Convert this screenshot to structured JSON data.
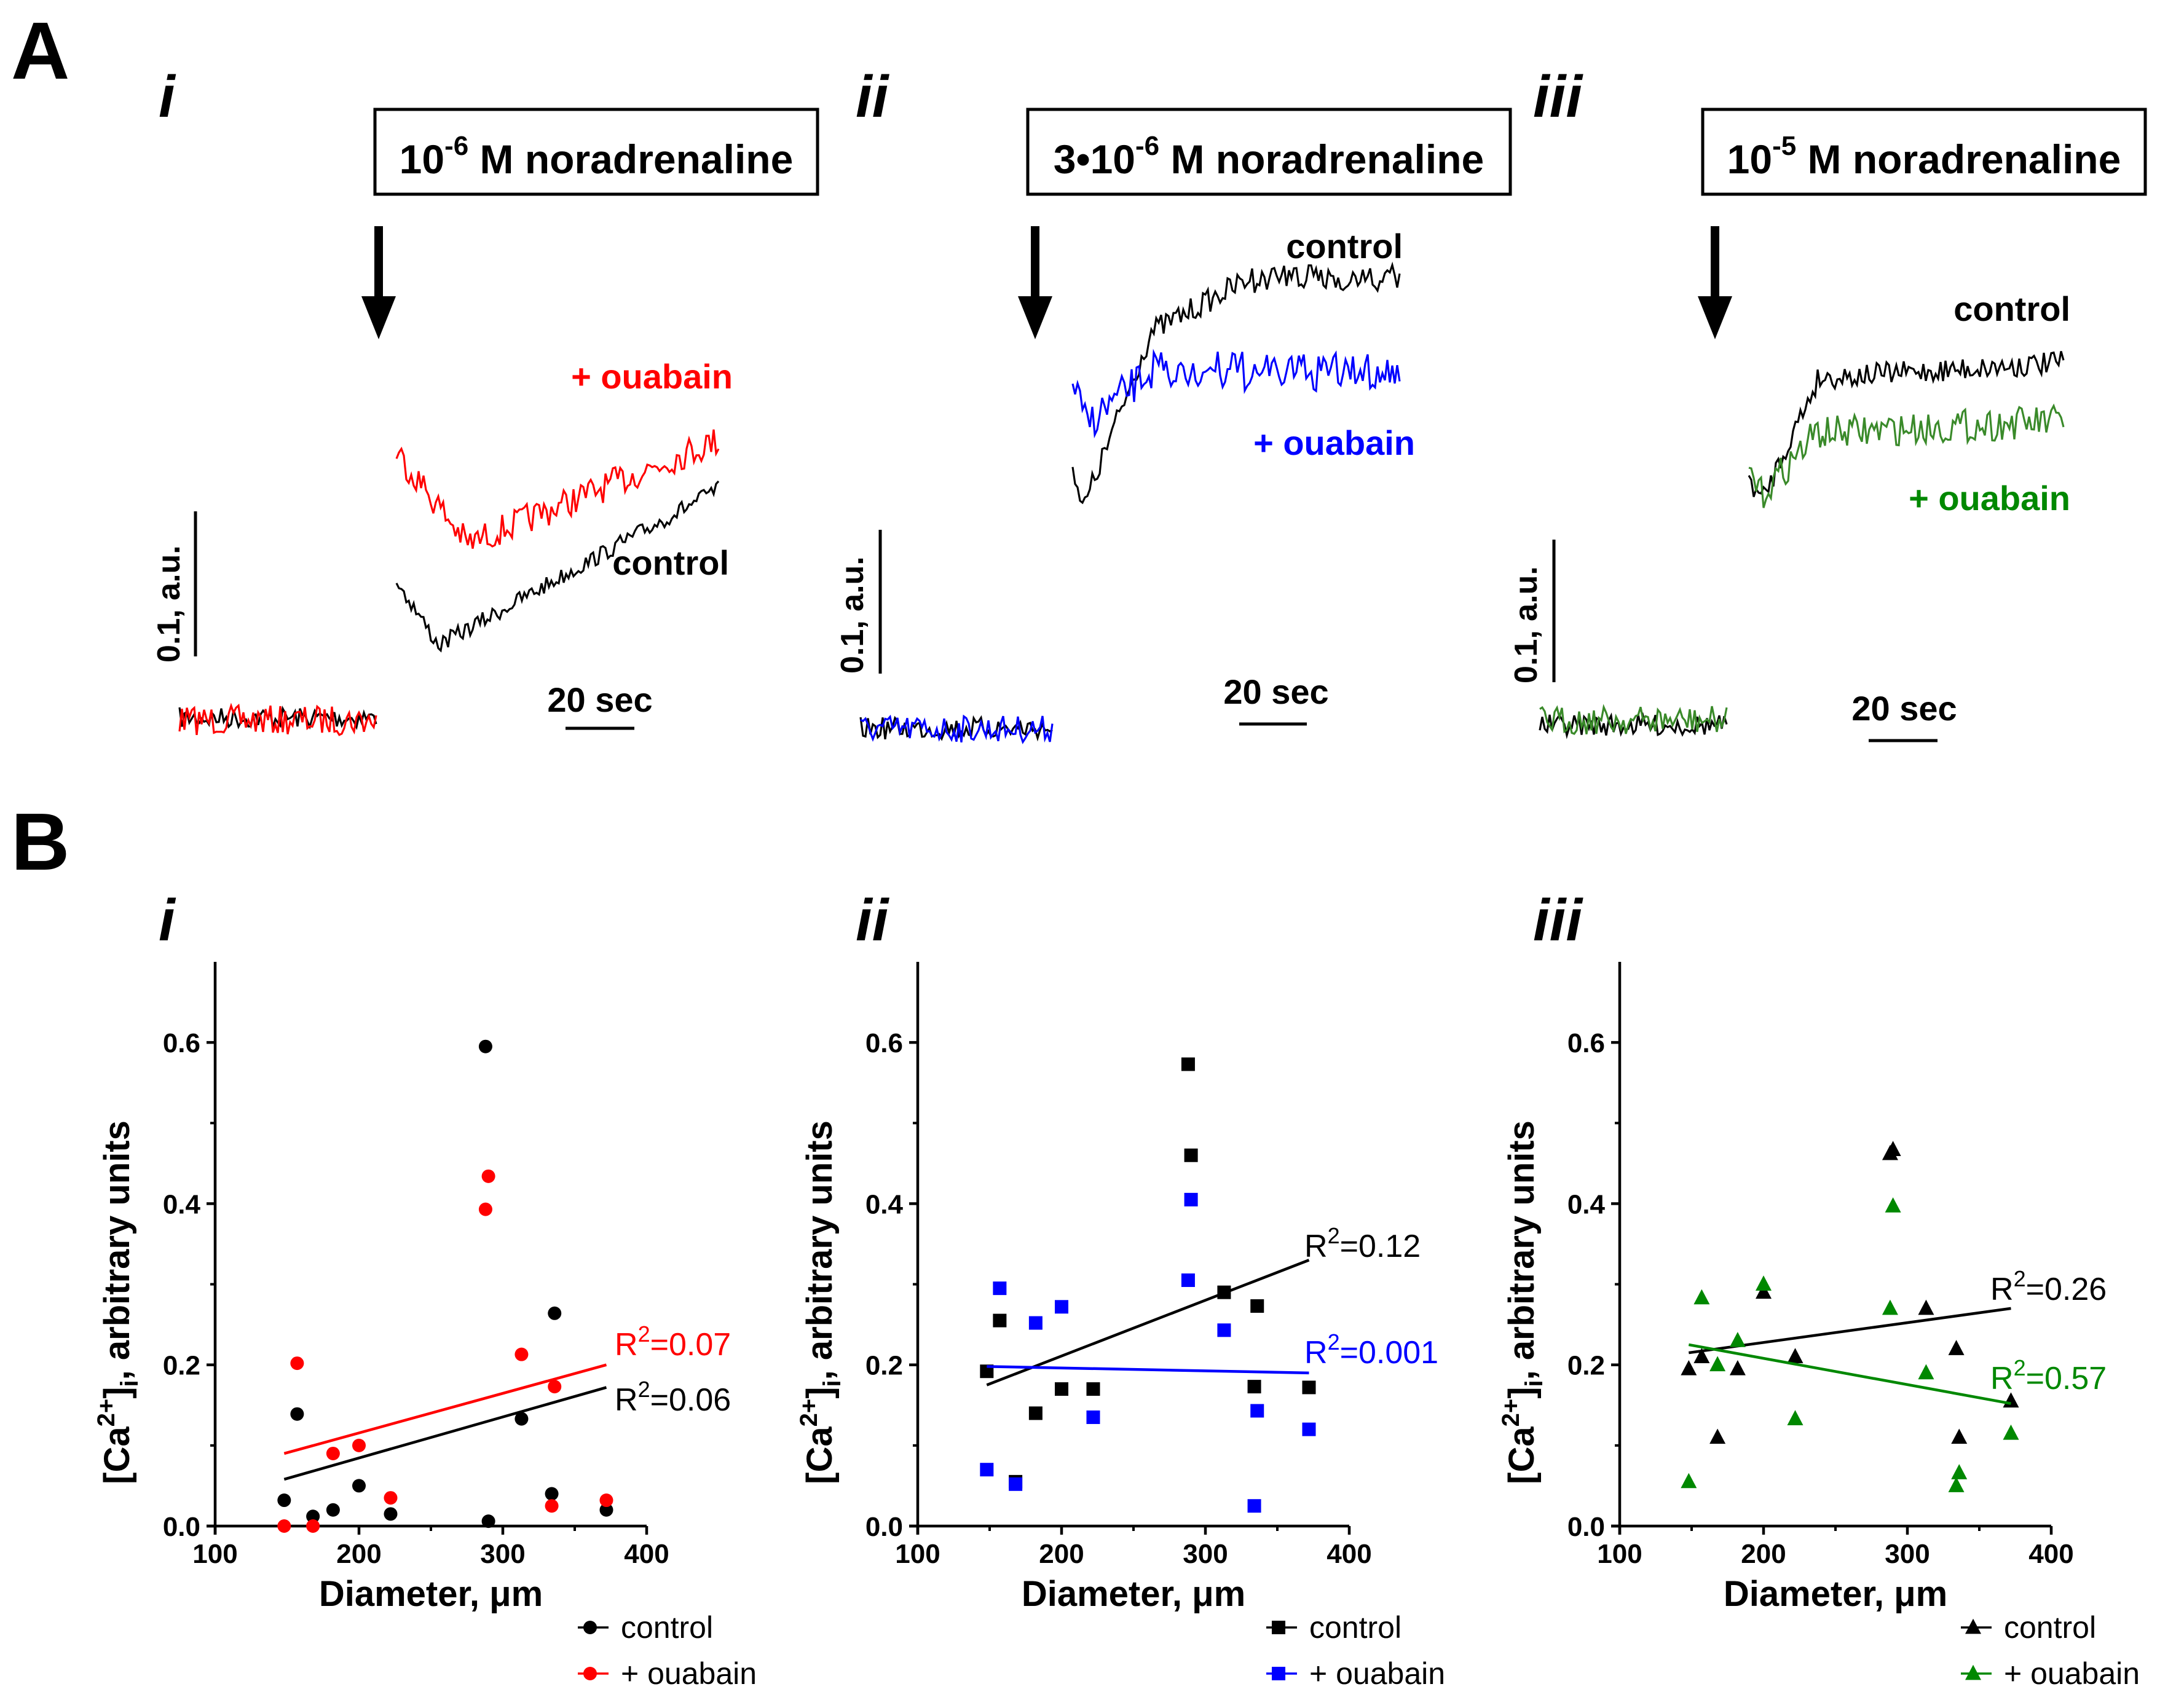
{
  "panels": {
    "A": {
      "label": "A",
      "sub": [
        {
          "roman": "i",
          "stimulus": {
            "base": "10",
            "exponent": "-6",
            "rest": " M noradrenaline"
          },
          "traces": [
            {
              "name": "+ ouabain",
              "color": "#ff0000",
              "label": "+ ouabain"
            },
            {
              "name": "control",
              "color": "#000000",
              "label": "control"
            }
          ],
          "scale_y": "0.1, a.u.",
          "scale_x": "20 sec"
        },
        {
          "roman": "ii",
          "stimulus": {
            "base": "3•10",
            "exponent": "-6",
            "rest": " M noradrenaline"
          },
          "traces": [
            {
              "name": "control",
              "color": "#000000",
              "label": "control"
            },
            {
              "name": "+ ouabain",
              "color": "#0000ff",
              "label": "+ ouabain"
            }
          ],
          "scale_y": "0.1, a.u.",
          "scale_x": "20 sec"
        },
        {
          "roman": "iii",
          "stimulus": {
            "base": "10",
            "exponent": "-5",
            "rest": " M noradrenaline"
          },
          "traces": [
            {
              "name": "control",
              "color": "#000000",
              "label": "control"
            },
            {
              "name": "+ ouabain",
              "color": "#3a8a2a",
              "label": "+ ouabain"
            }
          ],
          "scale_y": "0.1, a.u.",
          "scale_x": "20 sec"
        }
      ]
    },
    "B": {
      "label": "B"
    }
  },
  "chart_data": [
    {
      "type": "scatter",
      "roman": "i",
      "marker": "circle",
      "xlabel": "Diameter, μm",
      "ylabel_parts": {
        "pre": "[Ca",
        "sup": "2+",
        "mid": "]",
        "sub": "i",
        "post": ", arbitrary units"
      },
      "xlim": [
        100,
        400
      ],
      "ylim": [
        0,
        0.7
      ],
      "xticks": [
        100,
        200,
        300,
        400
      ],
      "yticks": [
        0.0,
        0.2,
        0.4,
        0.6
      ],
      "ytick_labels": [
        "0.0",
        "0.2",
        "0.4",
        "0.6"
      ],
      "series": [
        {
          "name": "control",
          "color": "#000000",
          "points": [
            [
              148,
              0.032
            ],
            [
              157,
              0.139
            ],
            [
              168,
              0.012
            ],
            [
              182,
              0.02
            ],
            [
              200,
              0.05
            ],
            [
              222,
              0.015
            ],
            [
              288,
              0.595
            ],
            [
              290,
              0.006
            ],
            [
              313,
              0.133
            ],
            [
              334,
              0.04
            ],
            [
              336,
              0.264
            ],
            [
              372,
              0.02
            ]
          ],
          "fit": {
            "x": [
              148,
              372
            ],
            "y": [
              0.058,
              0.172
            ]
          },
          "r2_label": {
            "base": "R",
            "sup": "2",
            "rest": "=0.06"
          }
        },
        {
          "name": "+ ouabain",
          "color": "#ff0000",
          "points": [
            [
              148,
              0.0
            ],
            [
              157,
              0.202
            ],
            [
              168,
              0.0
            ],
            [
              182,
              0.09
            ],
            [
              200,
              0.1
            ],
            [
              222,
              0.035
            ],
            [
              288,
              0.393
            ],
            [
              290,
              0.434
            ],
            [
              313,
              0.213
            ],
            [
              334,
              0.025
            ],
            [
              336,
              0.173
            ],
            [
              372,
              0.032
            ]
          ],
          "fit": {
            "x": [
              148,
              372
            ],
            "y": [
              0.09,
              0.2
            ]
          },
          "r2_label": {
            "base": "R",
            "sup": "2",
            "rest": "=0.07"
          }
        }
      ],
      "legend": [
        "control",
        "+ ouabain"
      ]
    },
    {
      "type": "scatter",
      "roman": "ii",
      "marker": "square",
      "xlabel": "Diameter, μm",
      "ylabel_parts": {
        "pre": "[Ca",
        "sup": "2+",
        "mid": "]",
        "sub": "i",
        "post": ", arbitrary units"
      },
      "xlim": [
        100,
        400
      ],
      "ylim": [
        0,
        0.7
      ],
      "xticks": [
        100,
        200,
        300,
        400
      ],
      "yticks": [
        0.0,
        0.2,
        0.4,
        0.6
      ],
      "ytick_labels": [
        "0.0",
        "0.2",
        "0.4",
        "0.6"
      ],
      "series": [
        {
          "name": "control",
          "color": "#000000",
          "points": [
            [
              148,
              0.192
            ],
            [
              157,
              0.255
            ],
            [
              168,
              0.055
            ],
            [
              182,
              0.14
            ],
            [
              200,
              0.17
            ],
            [
              222,
              0.17
            ],
            [
              288,
              0.573
            ],
            [
              290,
              0.46
            ],
            [
              313,
              0.29
            ],
            [
              334,
              0.173
            ],
            [
              336,
              0.273
            ],
            [
              372,
              0.172
            ]
          ],
          "fit": {
            "x": [
              148,
              372
            ],
            "y": [
              0.175,
              0.33
            ]
          },
          "r2_label": {
            "base": "R",
            "sup": "2",
            "rest": "=0.12"
          }
        },
        {
          "name": "+ ouabain",
          "color": "#0000ff",
          "points": [
            [
              148,
              0.07
            ],
            [
              157,
              0.295
            ],
            [
              168,
              0.052
            ],
            [
              182,
              0.252
            ],
            [
              200,
              0.272
            ],
            [
              222,
              0.135
            ],
            [
              288,
              0.305
            ],
            [
              290,
              0.405
            ],
            [
              313,
              0.243
            ],
            [
              334,
              0.025
            ],
            [
              336,
              0.143
            ],
            [
              372,
              0.12
            ]
          ],
          "fit": {
            "x": [
              148,
              372
            ],
            "y": [
              0.198,
              0.19
            ]
          },
          "r2_label": {
            "base": "R",
            "sup": "2",
            "rest": "=0.001"
          }
        }
      ],
      "legend": [
        "control",
        "+ ouabain"
      ]
    },
    {
      "type": "scatter",
      "roman": "iii",
      "marker": "triangle",
      "xlabel": "Diameter, μm",
      "ylabel_parts": {
        "pre": "[Ca",
        "sup": "2+",
        "mid": "]",
        "sub": "i",
        "post": ", arbitrary units"
      },
      "xlim": [
        100,
        400
      ],
      "ylim": [
        0,
        0.7
      ],
      "xticks": [
        100,
        200,
        300,
        400
      ],
      "yticks": [
        0.0,
        0.2,
        0.4,
        0.6
      ],
      "ytick_labels": [
        "0.0",
        "0.2",
        "0.4",
        "0.6"
      ],
      "series": [
        {
          "name": "control",
          "color": "#000000",
          "points": [
            [
              148,
              0.195
            ],
            [
              157,
              0.21
            ],
            [
              168,
              0.11
            ],
            [
              182,
              0.195
            ],
            [
              200,
              0.29
            ],
            [
              222,
              0.21
            ],
            [
              288,
              0.462
            ],
            [
              290,
              0.467
            ],
            [
              313,
              0.27
            ],
            [
              334,
              0.22
            ],
            [
              336,
              0.11
            ],
            [
              372,
              0.155
            ]
          ],
          "fit": {
            "x": [
              148,
              372
            ],
            "y": [
              0.215,
              0.27
            ]
          },
          "r2_label": {
            "base": "R",
            "sup": "2",
            "rest": "=0.26"
          }
        },
        {
          "name": "+ ouabain",
          "color": "#008800",
          "points": [
            [
              148,
              0.055
            ],
            [
              157,
              0.283
            ],
            [
              168,
              0.2
            ],
            [
              182,
              0.23
            ],
            [
              200,
              0.3
            ],
            [
              222,
              0.133
            ],
            [
              288,
              0.27
            ],
            [
              290,
              0.397
            ],
            [
              313,
              0.19
            ],
            [
              334,
              0.05
            ],
            [
              336,
              0.066
            ],
            [
              372,
              0.115
            ]
          ],
          "fit": {
            "x": [
              148,
              372
            ],
            "y": [
              0.225,
              0.152
            ]
          },
          "r2_label": {
            "base": "R",
            "sup": "2",
            "rest": "=0.57"
          }
        }
      ],
      "legend": [
        "control",
        "+ ouabain"
      ]
    }
  ]
}
